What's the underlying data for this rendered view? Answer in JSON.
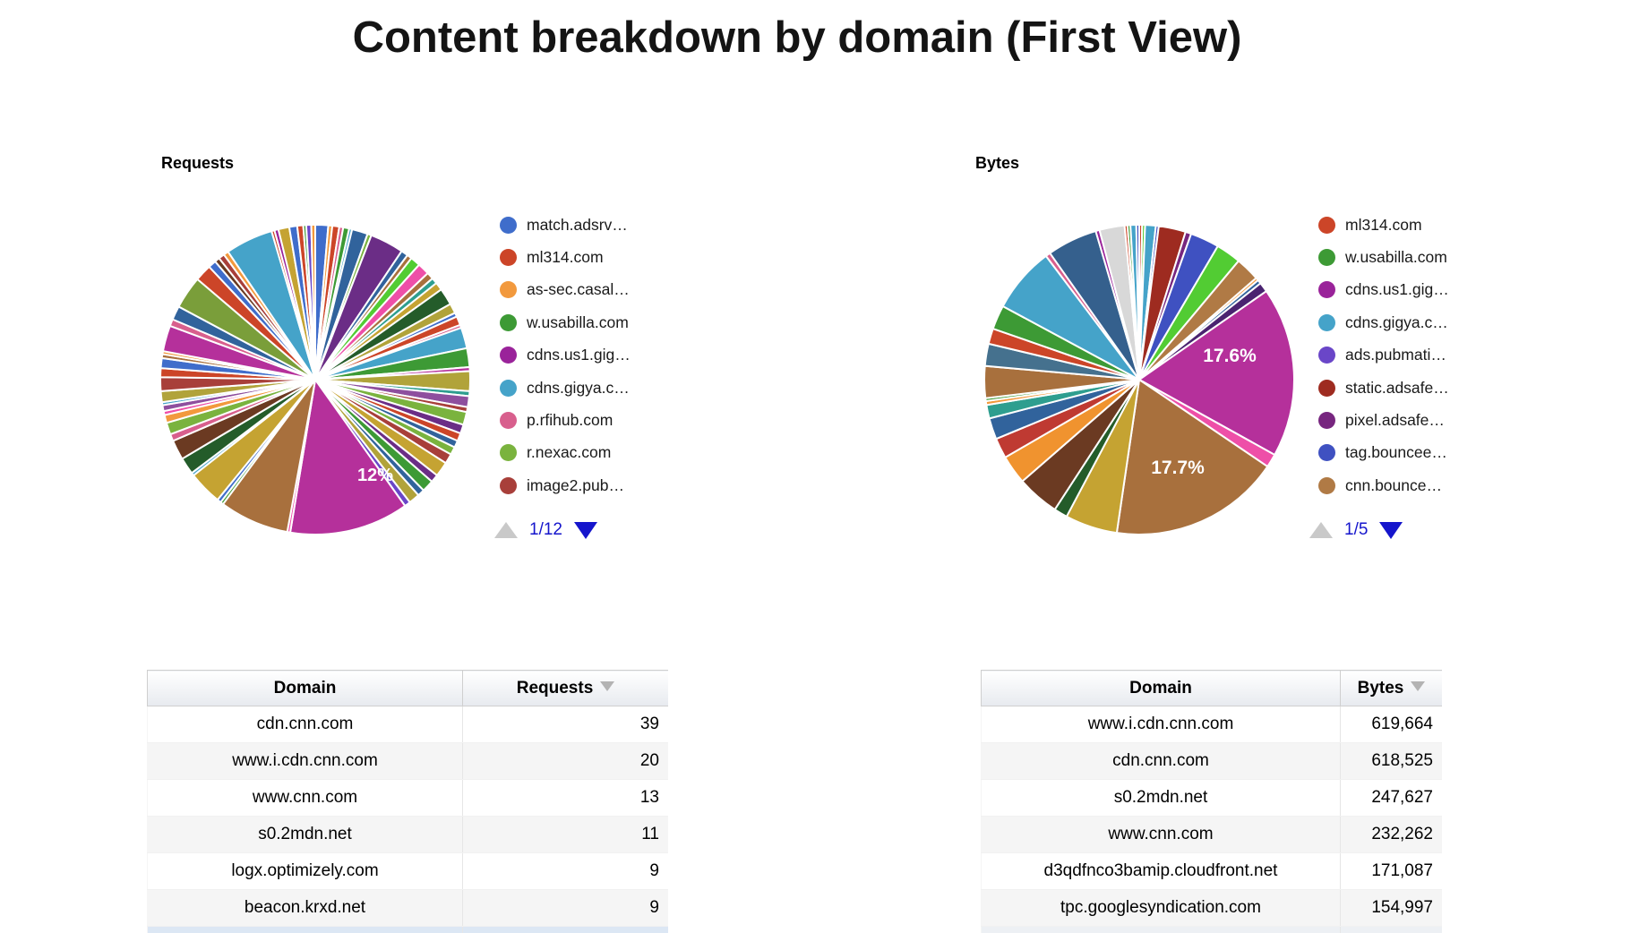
{
  "title": "Content breakdown by domain (First View)",
  "ui_colors": {
    "pager_active": "#1515cc",
    "pager_disabled": "#c9c9c9",
    "table_stripe": "#f5f5f5"
  },
  "chart_data": [
    {
      "type": "pie",
      "title": "Requests",
      "percent_labels": [
        "12%"
      ],
      "legend": {
        "page": "1/12",
        "items": [
          {
            "label": "match.adsrv…",
            "color": "#3f6dcb"
          },
          {
            "label": "ml314.com",
            "color": "#cc4528"
          },
          {
            "label": "as-sec.casal…",
            "color": "#f2993d"
          },
          {
            "label": "w.usabilla.com",
            "color": "#3d9a35"
          },
          {
            "label": "cdns.us1.gig…",
            "color": "#9a239a"
          },
          {
            "label": "cdns.gigya.c…",
            "color": "#45a3c9"
          },
          {
            "label": "p.rfihub.com",
            "color": "#d85f8d"
          },
          {
            "label": "r.nexac.com",
            "color": "#7ab33e"
          },
          {
            "label": "image2.pub…",
            "color": "#a83f3a"
          }
        ]
      },
      "slices": [
        [
          1.3,
          "#3f6dcb"
        ],
        [
          0.4,
          "#f2993d"
        ],
        [
          0.7,
          "#cc4528"
        ],
        [
          0.4,
          "#d85f8d"
        ],
        [
          0.6,
          "#3d9a35"
        ],
        [
          0.3,
          "#45a3c9"
        ],
        [
          1.6,
          "#31639c"
        ],
        [
          0.4,
          "#7ab33e"
        ],
        [
          3.4,
          "#6b2d86"
        ],
        [
          0.7,
          "#31639c"
        ],
        [
          0.5,
          "#a8703d"
        ],
        [
          1.0,
          "#52cc33"
        ],
        [
          1.2,
          "#ee4fa8"
        ],
        [
          0.7,
          "#a8703d"
        ],
        [
          0.6,
          "#2e9e8f"
        ],
        [
          0.8,
          "#c5a332"
        ],
        [
          1.7,
          "#245c2a"
        ],
        [
          1.0,
          "#b1a33a"
        ],
        [
          0.4,
          "#3f6dcb"
        ],
        [
          0.9,
          "#cc4528"
        ],
        [
          0.3,
          "#d85f8d"
        ],
        [
          2.1,
          "#45a3c9"
        ],
        [
          1.9,
          "#3d9a35"
        ],
        [
          0.4,
          "#b5309b"
        ],
        [
          2.0,
          "#b1a33a"
        ],
        [
          0.5,
          "#2e9e8f"
        ],
        [
          1.1,
          "#8e4f9e"
        ],
        [
          0.5,
          "#a83f3a"
        ],
        [
          1.3,
          "#7ab33e"
        ],
        [
          0.9,
          "#6b2d86"
        ],
        [
          0.8,
          "#cc4528"
        ],
        [
          0.7,
          "#31639c"
        ],
        [
          0.8,
          "#7ab33e"
        ],
        [
          1.0,
          "#a83f3a"
        ],
        [
          1.5,
          "#c5a332"
        ],
        [
          0.8,
          "#6b2d86"
        ],
        [
          1.2,
          "#3d9a35"
        ],
        [
          0.7,
          "#31639c"
        ],
        [
          1.1,
          "#b1a33a"
        ],
        [
          0.6,
          "#6a46c8"
        ],
        [
          12.0,
          "#b5309b"
        ],
        [
          0.3,
          "#ee4fa8"
        ],
        [
          7.0,
          "#a8703d"
        ],
        [
          0.3,
          "#3d9a35"
        ],
        [
          0.4,
          "#3f6dcb"
        ],
        [
          3.4,
          "#c5a332"
        ],
        [
          0.3,
          "#45a3c9"
        ],
        [
          1.7,
          "#245c2a"
        ],
        [
          2.0,
          "#6b3a22"
        ],
        [
          0.7,
          "#d85f8d"
        ],
        [
          1.2,
          "#7ab33e"
        ],
        [
          0.8,
          "#f2993d"
        ],
        [
          0.4,
          "#ee4fa8"
        ],
        [
          0.6,
          "#8e4f9e"
        ],
        [
          0.3,
          "#45a3c9"
        ],
        [
          1.1,
          "#b1a33a"
        ],
        [
          1.4,
          "#a83f3a"
        ],
        [
          0.9,
          "#cc4528"
        ],
        [
          1.0,
          "#3f6dcb"
        ],
        [
          0.4,
          "#a8703d"
        ],
        [
          0.3,
          "#f2993d"
        ],
        [
          2.6,
          "#b5309b"
        ],
        [
          0.7,
          "#d85f8d"
        ],
        [
          1.4,
          "#31639c"
        ],
        [
          3.3,
          "#7a9e3a"
        ],
        [
          1.7,
          "#cc4528"
        ],
        [
          0.8,
          "#3f6dcb"
        ],
        [
          0.5,
          "#6b3a22"
        ],
        [
          0.6,
          "#a83f3a"
        ],
        [
          0.5,
          "#f2993d"
        ],
        [
          4.8,
          "#45a3c9"
        ],
        [
          0.3,
          "#cc4528"
        ],
        [
          0.4,
          "#9a239a"
        ],
        [
          1.1,
          "#c5a332"
        ],
        [
          0.8,
          "#3f6dcb"
        ],
        [
          0.6,
          "#cc4528"
        ],
        [
          0.3,
          "#3d9a35"
        ],
        [
          0.5,
          "#6a46c8"
        ],
        [
          0.4,
          "#f2993d"
        ]
      ]
    },
    {
      "type": "pie",
      "title": "Bytes",
      "percent_labels": [
        "17.6%",
        "17.7%"
      ],
      "legend": {
        "page": "1/5",
        "items": [
          {
            "label": "ml314.com",
            "color": "#cc4528"
          },
          {
            "label": "w.usabilla.com",
            "color": "#3d9a35"
          },
          {
            "label": "cdns.us1.gig…",
            "color": "#9a239a"
          },
          {
            "label": "cdns.gigya.c…",
            "color": "#45a3c9"
          },
          {
            "label": "ads.pubmati…",
            "color": "#6a46c8"
          },
          {
            "label": "static.adsafe…",
            "color": "#9e2b20"
          },
          {
            "label": "pixel.adsafe…",
            "color": "#77267f"
          },
          {
            "label": "tag.bouncee…",
            "color": "#3f51c1"
          },
          {
            "label": "cnn.bounce…",
            "color": "#b07a45"
          }
        ]
      },
      "slices": [
        [
          0.3,
          "#cc4528"
        ],
        [
          0.3,
          "#52cc33"
        ],
        [
          1.1,
          "#45a3c9"
        ],
        [
          0.3,
          "#3f51c1"
        ],
        [
          2.8,
          "#9e2b20"
        ],
        [
          0.6,
          "#77267f"
        ],
        [
          3.0,
          "#3f51c1"
        ],
        [
          2.6,
          "#52cc33"
        ],
        [
          2.5,
          "#b07a45"
        ],
        [
          0.3,
          "#f2993d"
        ],
        [
          0.4,
          "#31639c"
        ],
        [
          1.0,
          "#4a2370"
        ],
        [
          17.6,
          "#b5309b"
        ],
        [
          1.4,
          "#ee4fa8"
        ],
        [
          17.7,
          "#a8703d"
        ],
        [
          5.4,
          "#c5a332"
        ],
        [
          1.4,
          "#245c2a"
        ],
        [
          4.4,
          "#6b3a22"
        ],
        [
          3.0,
          "#f0932f"
        ],
        [
          2.1,
          "#bf3a32"
        ],
        [
          2.2,
          "#31639c"
        ],
        [
          1.4,
          "#2e9e8f"
        ],
        [
          0.4,
          "#f2993d"
        ],
        [
          0.3,
          "#3d9a35"
        ],
        [
          3.3,
          "#a8703d"
        ],
        [
          2.3,
          "#45718e"
        ],
        [
          1.6,
          "#cc4528"
        ],
        [
          2.5,
          "#3d9a35"
        ],
        [
          6.8,
          "#45a3c9"
        ],
        [
          0.5,
          "#d85f8d"
        ],
        [
          5.2,
          "#35608d"
        ],
        [
          0.4,
          "#9a239a"
        ],
        [
          2.6,
          "#d8d8d8"
        ],
        [
          0.3,
          "#cc4528"
        ],
        [
          0.3,
          "#3d9a35"
        ],
        [
          0.6,
          "#45a3c9"
        ],
        [
          0.3,
          "#3f51c1"
        ]
      ]
    },
    {
      "type": "table",
      "headers": [
        "Domain",
        "Requests"
      ],
      "sort": {
        "column": "Requests",
        "direction": "desc"
      },
      "rows": [
        [
          "cdn.cnn.com",
          "39"
        ],
        [
          "www.i.cdn.cnn.com",
          "20"
        ],
        [
          "www.cnn.com",
          "13"
        ],
        [
          "s0.2mdn.net",
          "11"
        ],
        [
          "logx.optimizely.com",
          "9"
        ],
        [
          "beacon.krxd.net",
          "9"
        ]
      ]
    },
    {
      "type": "table",
      "headers": [
        "Domain",
        "Bytes"
      ],
      "sort": {
        "column": "Bytes",
        "direction": "desc"
      },
      "rows": [
        [
          "www.i.cdn.cnn.com",
          "619,664"
        ],
        [
          "cdn.cnn.com",
          "618,525"
        ],
        [
          "s0.2mdn.net",
          "247,627"
        ],
        [
          "www.cnn.com",
          "232,262"
        ],
        [
          "d3qdfnco3bamip.cloudfront.net",
          "171,087"
        ],
        [
          "tpc.googlesyndication.com",
          "154,997"
        ]
      ]
    }
  ]
}
